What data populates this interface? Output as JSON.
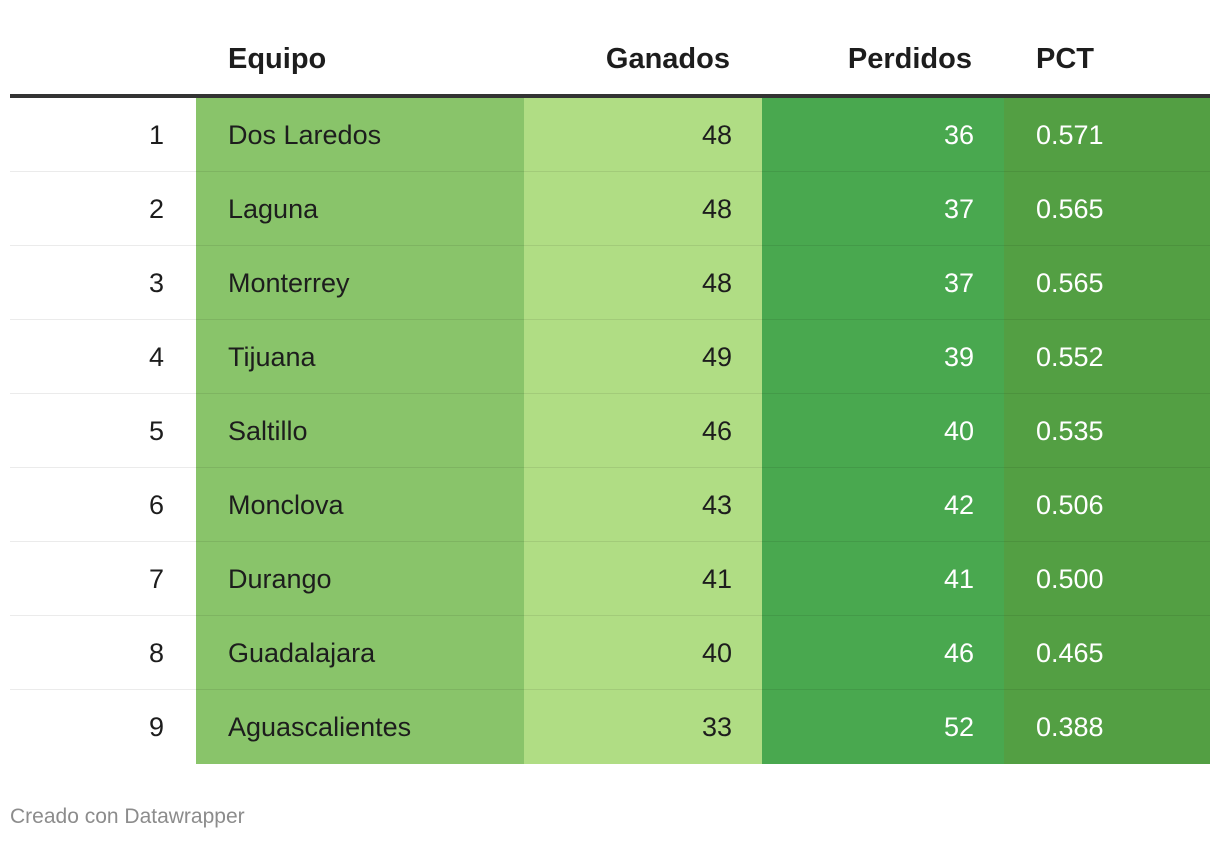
{
  "table": {
    "headers": {
      "rank": "",
      "team": "Equipo",
      "won": "Ganados",
      "lost": "Perdidos",
      "pct": "PCT"
    },
    "rows": [
      {
        "rank": "1",
        "team": "Dos Laredos",
        "won": "48",
        "lost": "36",
        "pct": "0.571"
      },
      {
        "rank": "2",
        "team": "Laguna",
        "won": "48",
        "lost": "37",
        "pct": "0.565"
      },
      {
        "rank": "3",
        "team": "Monterrey",
        "won": "48",
        "lost": "37",
        "pct": "0.565"
      },
      {
        "rank": "4",
        "team": "Tijuana",
        "won": "49",
        "lost": "39",
        "pct": "0.552"
      },
      {
        "rank": "5",
        "team": "Saltillo",
        "won": "46",
        "lost": "40",
        "pct": "0.535"
      },
      {
        "rank": "6",
        "team": "Monclova",
        "won": "43",
        "lost": "42",
        "pct": "0.506"
      },
      {
        "rank": "7",
        "team": "Durango",
        "won": "41",
        "lost": "41",
        "pct": "0.500"
      },
      {
        "rank": "8",
        "team": "Guadalajara",
        "won": "40",
        "lost": "46",
        "pct": "0.465"
      },
      {
        "rank": "9",
        "team": "Aguascalientes",
        "won": "33",
        "lost": "52",
        "pct": "0.388"
      }
    ],
    "column_colors": {
      "team": "#89c46a",
      "won": "#b0dd84",
      "lost": "#49a84f",
      "pct": "#539f43"
    }
  },
  "chart_data": {
    "type": "table",
    "columns": [
      "",
      "Equipo",
      "Ganados",
      "Perdidos",
      "PCT"
    ],
    "rows": [
      [
        1,
        "Dos Laredos",
        48,
        36,
        0.571
      ],
      [
        2,
        "Laguna",
        48,
        37,
        0.565
      ],
      [
        3,
        "Monterrey",
        48,
        37,
        0.565
      ],
      [
        4,
        "Tijuana",
        49,
        39,
        0.552
      ],
      [
        5,
        "Saltillo",
        46,
        40,
        0.535
      ],
      [
        6,
        "Monclova",
        43,
        42,
        0.506
      ],
      [
        7,
        "Durango",
        41,
        41,
        0.5
      ],
      [
        8,
        "Guadalajara",
        40,
        46,
        0.465
      ],
      [
        9,
        "Aguascalientes",
        33,
        52,
        0.388
      ]
    ]
  },
  "footer": {
    "credit": "Creado con Datawrapper"
  }
}
